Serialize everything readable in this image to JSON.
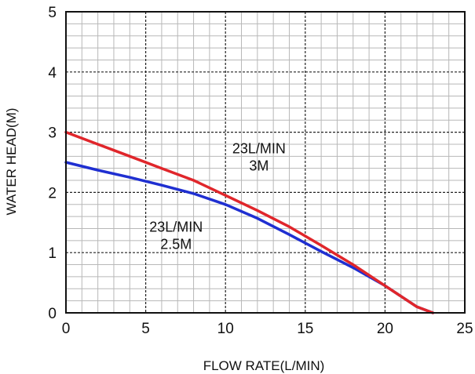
{
  "chart_data": {
    "type": "line",
    "xlabel": "FLOW  RATE(L/MIN)",
    "ylabel": "WATER  HEAD(M)",
    "xlim": [
      0,
      25
    ],
    "ylim": [
      0,
      5
    ],
    "x_ticks": [
      "0",
      "5",
      "10",
      "15",
      "20",
      "25"
    ],
    "y_ticks": [
      "0",
      "1",
      "2",
      "3",
      "4",
      "5"
    ],
    "grid": true,
    "series": [
      {
        "color": "#e0262b",
        "x": [
          0,
          2,
          4,
          6,
          8,
          10,
          12,
          14,
          16,
          18,
          20,
          22,
          23
        ],
        "y": [
          3.0,
          2.8,
          2.6,
          2.4,
          2.2,
          1.95,
          1.7,
          1.43,
          1.12,
          0.8,
          0.45,
          0.1,
          0.0
        ]
      },
      {
        "color": "#1f2fd1",
        "x": [
          0,
          2,
          4,
          6,
          8,
          10,
          12,
          14,
          16,
          18,
          20,
          22,
          23
        ],
        "y": [
          2.5,
          2.37,
          2.25,
          2.12,
          1.98,
          1.8,
          1.57,
          1.3,
          1.02,
          0.75,
          0.45,
          0.1,
          0.0
        ]
      }
    ],
    "annotations": [
      {
        "lines": [
          "23L/MIN",
          "3M"
        ],
        "x": 12.1,
        "y": 2.65
      },
      {
        "lines": [
          "23L/MIN",
          "2.5M"
        ],
        "x": 6.9,
        "y": 1.35
      }
    ]
  }
}
